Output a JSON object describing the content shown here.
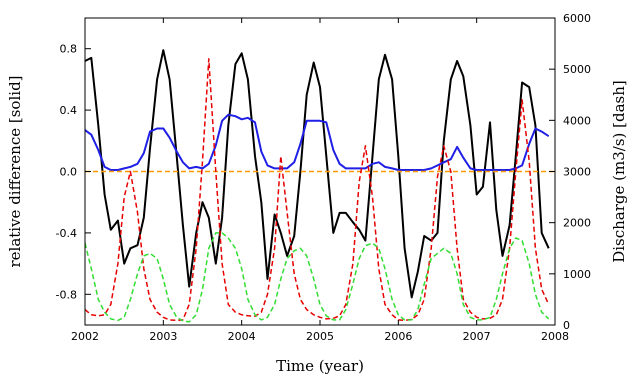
{
  "chart_data": {
    "type": "line",
    "title": "",
    "xlabel": "Time (year)",
    "ylabel": "relative difference [solid]",
    "y2label": "Discharge (m3/s) [dash]",
    "xlim": [
      2002,
      2008
    ],
    "ylim": [
      -1.0,
      1.0
    ],
    "y2lim": [
      0,
      6000
    ],
    "x_ticks": [
      2002,
      2003,
      2004,
      2005,
      2006,
      2007,
      2008
    ],
    "x_tick_labels": [
      "2002",
      "2003",
      "2004",
      "2005",
      "2006",
      "2007",
      "2008"
    ],
    "y_ticks": [
      -0.8,
      -0.4,
      0.0,
      0.4,
      0.8
    ],
    "y_tick_labels": [
      "-0.8",
      "-0.4",
      "0.0",
      "0.4",
      "0.8"
    ],
    "y2_ticks": [
      0,
      1000,
      2000,
      3000,
      4000,
      5000,
      6000
    ],
    "y2_tick_labels": [
      "0",
      "1000",
      "2000",
      "3000",
      "4000",
      "5000",
      "6000"
    ],
    "grid": false,
    "legend": "none",
    "series": [
      {
        "axis": "left",
        "style": "solid",
        "color": "#000000",
        "x": [
          2002.0,
          2002.08,
          2002.17,
          2002.25,
          2002.33,
          2002.42,
          2002.5,
          2002.58,
          2002.67,
          2002.75,
          2002.83,
          2002.92,
          2003.0,
          2003.08,
          2003.17,
          2003.25,
          2003.33,
          2003.42,
          2003.5,
          2003.58,
          2003.67,
          2003.75,
          2003.83,
          2003.92,
          2004.0,
          2004.08,
          2004.17,
          2004.25,
          2004.33,
          2004.42,
          2004.5,
          2004.58,
          2004.67,
          2004.75,
          2004.83,
          2004.92,
          2005.0,
          2005.08,
          2005.17,
          2005.25,
          2005.33,
          2005.42,
          2005.5,
          2005.58,
          2005.67,
          2005.75,
          2005.83,
          2005.92,
          2006.0,
          2006.08,
          2006.17,
          2006.25,
          2006.33,
          2006.42,
          2006.5,
          2006.58,
          2006.67,
          2006.75,
          2006.83,
          2006.92,
          2007.0,
          2007.08,
          2007.17,
          2007.25,
          2007.33,
          2007.42,
          2007.5,
          2007.58,
          2007.67,
          2007.75,
          2007.83,
          2007.92
        ],
        "values": [
          0.72,
          0.74,
          0.3,
          -0.15,
          -0.38,
          -0.32,
          -0.6,
          -0.5,
          -0.48,
          -0.3,
          0.15,
          0.6,
          0.79,
          0.6,
          0.1,
          -0.35,
          -0.75,
          -0.4,
          -0.2,
          -0.3,
          -0.6,
          -0.3,
          0.3,
          0.7,
          0.77,
          0.6,
          0.1,
          -0.2,
          -0.7,
          -0.28,
          -0.4,
          -0.55,
          -0.42,
          0.0,
          0.5,
          0.71,
          0.55,
          0.1,
          -0.4,
          -0.27,
          -0.27,
          -0.33,
          -0.38,
          -0.45,
          0.1,
          0.6,
          0.76,
          0.6,
          0.1,
          -0.5,
          -0.82,
          -0.65,
          -0.42,
          -0.45,
          -0.4,
          0.2,
          0.6,
          0.72,
          0.62,
          0.3,
          -0.15,
          -0.1,
          0.32,
          -0.25,
          -0.55,
          -0.35,
          0.1,
          0.58,
          0.55,
          0.3,
          -0.4,
          -0.5
        ]
      },
      {
        "axis": "left",
        "style": "solid",
        "color": "#1f1fe6",
        "x": [
          2002.0,
          2002.08,
          2002.17,
          2002.25,
          2002.33,
          2002.42,
          2002.5,
          2002.58,
          2002.67,
          2002.75,
          2002.83,
          2002.92,
          2003.0,
          2003.08,
          2003.17,
          2003.25,
          2003.33,
          2003.42,
          2003.5,
          2003.58,
          2003.67,
          2003.75,
          2003.83,
          2003.92,
          2004.0,
          2004.08,
          2004.17,
          2004.25,
          2004.33,
          2004.42,
          2004.5,
          2004.58,
          2004.67,
          2004.75,
          2004.83,
          2004.92,
          2005.0,
          2005.08,
          2005.17,
          2005.25,
          2005.33,
          2005.42,
          2005.5,
          2005.58,
          2005.67,
          2005.75,
          2005.83,
          2005.92,
          2006.0,
          2006.08,
          2006.17,
          2006.25,
          2006.33,
          2006.42,
          2006.5,
          2006.58,
          2006.67,
          2006.75,
          2006.83,
          2006.92,
          2007.0,
          2007.08,
          2007.17,
          2007.25,
          2007.33,
          2007.42,
          2007.5,
          2007.58,
          2007.67,
          2007.75,
          2007.83,
          2007.92
        ],
        "values": [
          0.27,
          0.24,
          0.14,
          0.03,
          0.01,
          0.01,
          0.02,
          0.03,
          0.05,
          0.12,
          0.26,
          0.28,
          0.28,
          0.22,
          0.13,
          0.06,
          0.02,
          0.03,
          0.02,
          0.05,
          0.17,
          0.33,
          0.37,
          0.36,
          0.34,
          0.35,
          0.32,
          0.13,
          0.04,
          0.02,
          0.02,
          0.02,
          0.06,
          0.18,
          0.33,
          0.33,
          0.33,
          0.32,
          0.14,
          0.05,
          0.02,
          0.02,
          0.02,
          0.02,
          0.05,
          0.06,
          0.03,
          0.02,
          0.01,
          0.01,
          0.01,
          0.01,
          0.01,
          0.02,
          0.04,
          0.06,
          0.08,
          0.16,
          0.09,
          0.02,
          0.01,
          0.01,
          0.01,
          0.01,
          0.01,
          0.01,
          0.02,
          0.04,
          0.18,
          0.28,
          0.26,
          0.23
        ]
      },
      {
        "axis": "left",
        "style": "dash",
        "color": "#ff9900",
        "x": [
          2002.0,
          2008.0
        ],
        "values": [
          0.0,
          0.0
        ]
      },
      {
        "axis": "right",
        "style": "dash",
        "color": "#e60000",
        "x": [
          2002.0,
          2002.08,
          2002.17,
          2002.25,
          2002.33,
          2002.42,
          2002.5,
          2002.58,
          2002.67,
          2002.75,
          2002.83,
          2002.92,
          2003.0,
          2003.08,
          2003.17,
          2003.25,
          2003.33,
          2003.42,
          2003.5,
          2003.58,
          2003.67,
          2003.75,
          2003.83,
          2003.92,
          2004.0,
          2004.08,
          2004.17,
          2004.25,
          2004.33,
          2004.42,
          2004.5,
          2004.58,
          2004.67,
          2004.75,
          2004.83,
          2004.92,
          2005.0,
          2005.08,
          2005.17,
          2005.25,
          2005.33,
          2005.42,
          2005.5,
          2005.58,
          2005.67,
          2005.75,
          2005.83,
          2005.92,
          2006.0,
          2006.08,
          2006.17,
          2006.25,
          2006.33,
          2006.42,
          2006.5,
          2006.58,
          2006.67,
          2006.75,
          2006.83,
          2006.92,
          2007.0,
          2007.08,
          2007.17,
          2007.25,
          2007.33,
          2007.42,
          2007.5,
          2007.58,
          2007.67,
          2007.75,
          2007.83,
          2007.92
        ],
        "values": [
          300,
          200,
          180,
          200,
          400,
          1200,
          2500,
          3000,
          2200,
          1100,
          500,
          250,
          150,
          100,
          90,
          100,
          400,
          1500,
          3200,
          5200,
          3000,
          1200,
          400,
          250,
          200,
          180,
          170,
          250,
          600,
          1500,
          3300,
          2200,
          1000,
          500,
          300,
          200,
          150,
          120,
          130,
          180,
          400,
          1200,
          2800,
          3500,
          2500,
          1100,
          400,
          200,
          100,
          90,
          110,
          200,
          500,
          1500,
          2900,
          3500,
          3000,
          1500,
          500,
          250,
          150,
          120,
          130,
          200,
          500,
          1500,
          3000,
          4400,
          3200,
          1500,
          700,
          400
        ]
      },
      {
        "axis": "right",
        "style": "dash",
        "color": "#33dd33",
        "x": [
          2002.0,
          2002.08,
          2002.17,
          2002.25,
          2002.33,
          2002.42,
          2002.5,
          2002.58,
          2002.67,
          2002.75,
          2002.83,
          2002.92,
          2003.0,
          2003.08,
          2003.17,
          2003.25,
          2003.33,
          2003.42,
          2003.5,
          2003.58,
          2003.67,
          2003.75,
          2003.83,
          2003.92,
          2004.0,
          2004.08,
          2004.17,
          2004.25,
          2004.33,
          2004.42,
          2004.5,
          2004.58,
          2004.67,
          2004.75,
          2004.83,
          2004.92,
          2005.0,
          2005.08,
          2005.17,
          2005.25,
          2005.33,
          2005.42,
          2005.5,
          2005.58,
          2005.67,
          2005.75,
          2005.83,
          2005.92,
          2006.0,
          2006.08,
          2006.17,
          2006.25,
          2006.33,
          2006.42,
          2006.5,
          2006.58,
          2006.67,
          2006.75,
          2006.83,
          2006.92,
          2007.0,
          2007.08,
          2007.17,
          2007.25,
          2007.33,
          2007.42,
          2007.5,
          2007.58,
          2007.67,
          2007.75,
          2007.83,
          2007.92
        ],
        "values": [
          1600,
          1100,
          500,
          250,
          120,
          90,
          150,
          500,
          1000,
          1350,
          1400,
          1300,
          900,
          400,
          150,
          80,
          60,
          200,
          700,
          1500,
          1800,
          1800,
          1700,
          1500,
          1100,
          500,
          200,
          100,
          150,
          400,
          900,
          1300,
          1450,
          1500,
          1350,
          900,
          400,
          180,
          100,
          100,
          300,
          800,
          1300,
          1550,
          1600,
          1500,
          1100,
          500,
          200,
          100,
          100,
          300,
          800,
          1300,
          1400,
          1500,
          1400,
          1000,
          400,
          150,
          100,
          100,
          150,
          500,
          1000,
          1500,
          1700,
          1650,
          1200,
          600,
          250,
          120
        ]
      }
    ]
  }
}
